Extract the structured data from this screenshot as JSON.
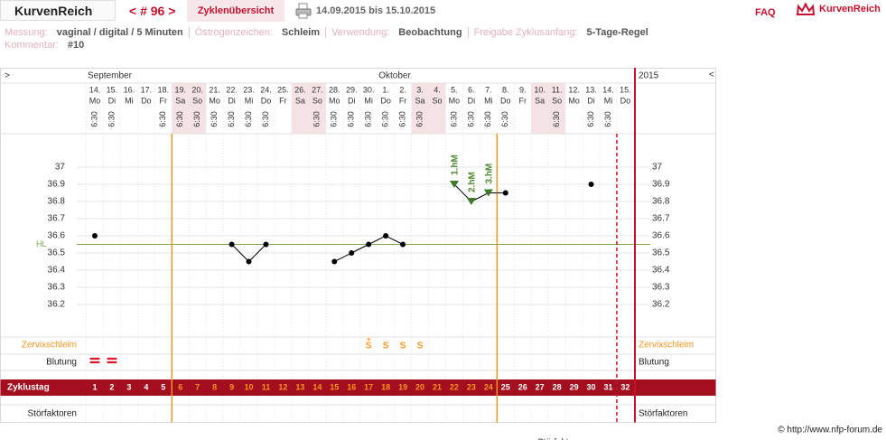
{
  "header": {
    "brand": "KurvenReich",
    "cycle_nav": "< # 96 >",
    "overview": "Zyklenübersicht",
    "date_range": "14.09.2015 bis 15.10.2015",
    "faq": "FAQ",
    "logo": "KurvenReich"
  },
  "info": [
    {
      "label": "Messung:",
      "value": "vaginal / digital / 5 Minuten"
    },
    {
      "label": "Östrogenzeichen:",
      "value": "Schleim"
    },
    {
      "label": "Verwendung:",
      "value": "Beobachtung"
    },
    {
      "label": "Freigabe Zyklusanfang:",
      "value": "5-Tage-Regel"
    }
  ],
  "comment": {
    "label": "Kommentar:",
    "value": "#10"
  },
  "chart_data": {
    "type": "line",
    "nav_left": ">",
    "nav_right": "<",
    "months": [
      "September",
      "Oktober"
    ],
    "year": "2015",
    "categories": [
      "14.",
      "15.",
      "16.",
      "17.",
      "18.",
      "19.",
      "20.",
      "21.",
      "22.",
      "23.",
      "24.",
      "25.",
      "26.",
      "27.",
      "28.",
      "29.",
      "30.",
      "1.",
      "2.",
      "3.",
      "4.",
      "5.",
      "6.",
      "7.",
      "8.",
      "9.",
      "10.",
      "11.",
      "12.",
      "13.",
      "14.",
      "15."
    ],
    "weekdays": [
      "Mo",
      "Di",
      "Mi",
      "Do",
      "Fr",
      "Sa",
      "So",
      "Mo",
      "Di",
      "Mi",
      "Do",
      "Fr",
      "Sa",
      "So",
      "Mo",
      "Di",
      "Mi",
      "Do",
      "Fr",
      "Sa",
      "So",
      "Mo",
      "Di",
      "Mi",
      "Do",
      "Fr",
      "Sa",
      "So",
      "Mo",
      "Di",
      "Mi",
      "Do"
    ],
    "times": [
      "6:30",
      "6:30",
      null,
      null,
      "6:30",
      "6:30",
      "6:30",
      "6:30",
      "6:30",
      "6:30",
      "6:30",
      null,
      null,
      "6:30",
      "6:30",
      "6:30",
      "6:30",
      "6:30",
      "6:30",
      "6:30",
      null,
      "6:30",
      "6:30",
      "6:30",
      "6:30",
      null,
      null,
      "6:30",
      null,
      "6:30",
      "6:30",
      null
    ],
    "values": [
      36.6,
      null,
      null,
      null,
      null,
      null,
      null,
      null,
      36.55,
      36.45,
      36.55,
      null,
      null,
      null,
      36.45,
      36.5,
      36.55,
      36.6,
      36.55,
      null,
      null,
      36.9,
      36.8,
      36.85,
      36.85,
      null,
      null,
      null,
      null,
      36.9,
      null,
      null
    ],
    "color": "#000000",
    "ylim": [
      36.0,
      37.2
    ],
    "yticks": [
      36.2,
      36.3,
      36.4,
      36.5,
      36.6,
      36.7,
      36.8,
      36.9,
      37
    ],
    "grid": true,
    "coverline": {
      "label": "HL",
      "value": 36.55,
      "color": "#7aa84a"
    },
    "annotations": [
      {
        "index": 21,
        "text": "1.hM"
      },
      {
        "index": 22,
        "text": "2.hM"
      },
      {
        "index": 23,
        "text": "3.hM"
      }
    ],
    "mucus_label": "Zervixschleim",
    "mucus": [
      {
        "index": 16,
        "text": "S",
        "sup": "+"
      },
      {
        "index": 17,
        "text": "S"
      },
      {
        "index": 18,
        "text": "S"
      },
      {
        "index": 19,
        "text": "S"
      }
    ],
    "bleeding_label": "Blutung",
    "bleeding_days": [
      0,
      1
    ],
    "cycle_day_label": "Zyklustag",
    "cycle_days": [
      1,
      2,
      3,
      4,
      5,
      6,
      7,
      8,
      9,
      10,
      11,
      12,
      13,
      14,
      15,
      16,
      17,
      18,
      19,
      20,
      21,
      22,
      23,
      24,
      25,
      26,
      27,
      28,
      29,
      30,
      31,
      32
    ],
    "disturbance_label": "Störfaktoren",
    "phase_lines_after": [
      4,
      23
    ],
    "dashed_line_after": 30
  },
  "footer": {
    "copyright": "© http://www.nfp-forum.de",
    "cut_text": "Störfaktoren"
  }
}
